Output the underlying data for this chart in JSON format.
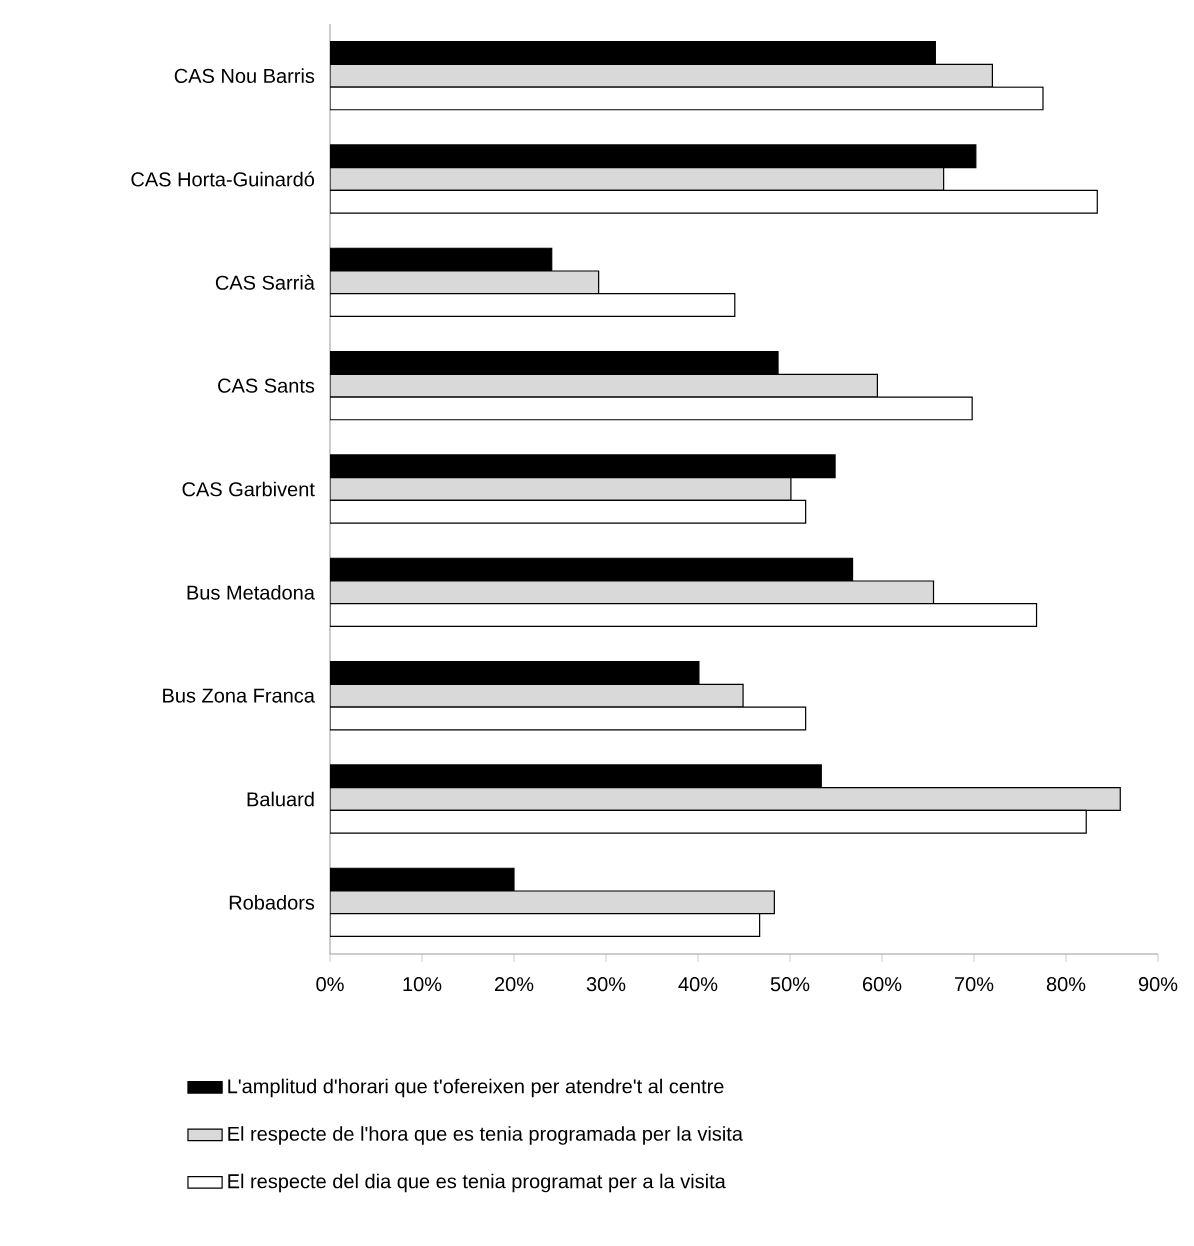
{
  "chart_data": {
    "type": "bar",
    "orientation": "horizontal",
    "categories": [
      "CAS Nou Barris",
      "CAS Horta-Guinardó",
      "CAS Sarrià",
      "CAS Sants",
      "CAS Garbivent",
      "Bus Metadona",
      "Bus Zona Franca",
      "Baluard",
      "Robadors"
    ],
    "series": [
      {
        "name": "L'amplitud d'horari que t'ofereixen per atendre't al centre",
        "color": "#000000",
        "values": [
          65.8,
          70.2,
          24.1,
          48.7,
          54.9,
          56.8,
          40.1,
          53.4,
          20.0
        ]
      },
      {
        "name": "El respecte de l'hora que es tenia programada per la visita",
        "color": "#d9d9d9",
        "values": [
          72.0,
          66.7,
          29.2,
          59.5,
          50.1,
          65.6,
          44.9,
          85.9,
          48.3
        ]
      },
      {
        "name": "El respecte del dia que es tenia programat per a la visita",
        "color": "#ffffff",
        "values": [
          77.5,
          83.4,
          44.0,
          69.8,
          51.7,
          76.8,
          51.7,
          82.2,
          46.7
        ]
      }
    ],
    "xlim": [
      0,
      90
    ],
    "xticks": [
      {
        "value": 0,
        "label": "0%"
      },
      {
        "value": 10,
        "label": "10%"
      },
      {
        "value": 20,
        "label": "20%"
      },
      {
        "value": 30,
        "label": "30%"
      },
      {
        "value": 40,
        "label": "40%"
      },
      {
        "value": 50,
        "label": "50%"
      },
      {
        "value": 60,
        "label": "60%"
      },
      {
        "value": 70,
        "label": "70%"
      },
      {
        "value": 80,
        "label": "80%"
      },
      {
        "value": 90,
        "label": "90%"
      }
    ],
    "legend": "bottom"
  }
}
